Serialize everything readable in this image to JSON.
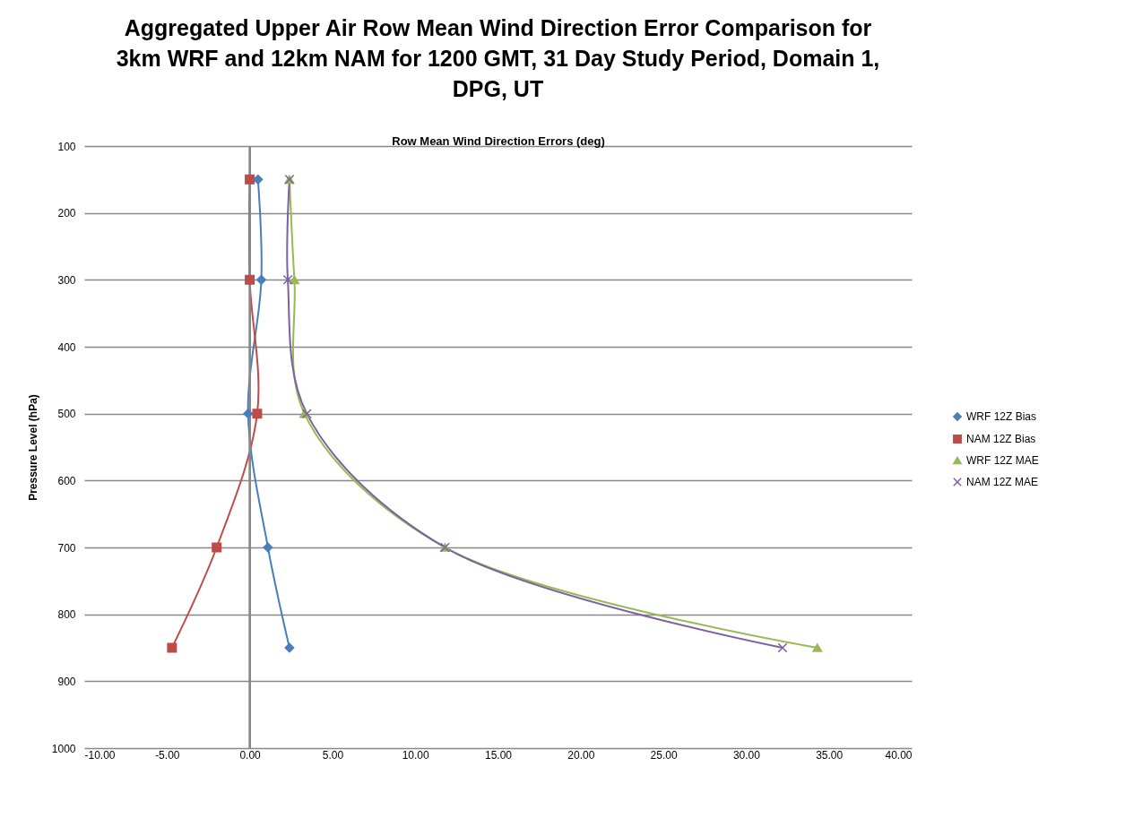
{
  "chart_data": {
    "type": "line",
    "title": "Aggregated Upper Air Row Mean Wind Direction Error Comparison for 3km WRF and 12km NAM for 1200 GMT, 31 Day Study Period, Domain 1, DPG, UT",
    "xlabel": "Row Mean Wind Direction Errors (deg)",
    "ylabel": "Pressure Level (hPa)",
    "series": [
      {
        "name": "WRF 12Z Bias",
        "color": "#4a7ebb",
        "marker": "diamond",
        "x": [
          0.5,
          0.7,
          -0.1,
          1.1,
          2.4
        ],
        "values": [
          150,
          300,
          500,
          700,
          850
        ]
      },
      {
        "name": "NAM 12Z Bias",
        "color": "#be4b48",
        "marker": "square",
        "x": [
          0.0,
          0.0,
          0.45,
          -2.0,
          -4.7
        ],
        "values": [
          150,
          300,
          500,
          700,
          850
        ]
      },
      {
        "name": "WRF 12Z MAE",
        "color": "#98b954",
        "marker": "triangle",
        "x": [
          2.4,
          2.7,
          3.3,
          11.8,
          34.3
        ],
        "values": [
          150,
          300,
          500,
          700,
          850
        ]
      },
      {
        "name": "NAM 12Z MAE",
        "color": "#7d60a0",
        "marker": "cross",
        "x": [
          2.4,
          2.3,
          3.45,
          11.8,
          32.2
        ],
        "values": [
          150,
          300,
          500,
          700,
          850
        ]
      }
    ],
    "ref_lines": [
      {
        "axis": "x",
        "value": 0,
        "color": "#888888"
      }
    ],
    "xlim": [
      -10,
      40
    ],
    "xticks": [
      {
        "value": -10,
        "label": "-10.00"
      },
      {
        "value": -5,
        "label": "-5.00"
      },
      {
        "value": 0,
        "label": "0.00"
      },
      {
        "value": 5,
        "label": "5.00"
      },
      {
        "value": 10,
        "label": "10.00"
      },
      {
        "value": 15,
        "label": "15.00"
      },
      {
        "value": 20,
        "label": "20.00"
      },
      {
        "value": 25,
        "label": "25.00"
      },
      {
        "value": 30,
        "label": "30.00"
      },
      {
        "value": 35,
        "label": "35.00"
      },
      {
        "value": 40,
        "label": "40.00"
      }
    ],
    "ylim": [
      1000,
      100
    ],
    "yticks": [
      100,
      200,
      300,
      400,
      500,
      600,
      700,
      800,
      900,
      1000
    ],
    "grid": "y",
    "legend": "right",
    "line_style": "solid"
  }
}
